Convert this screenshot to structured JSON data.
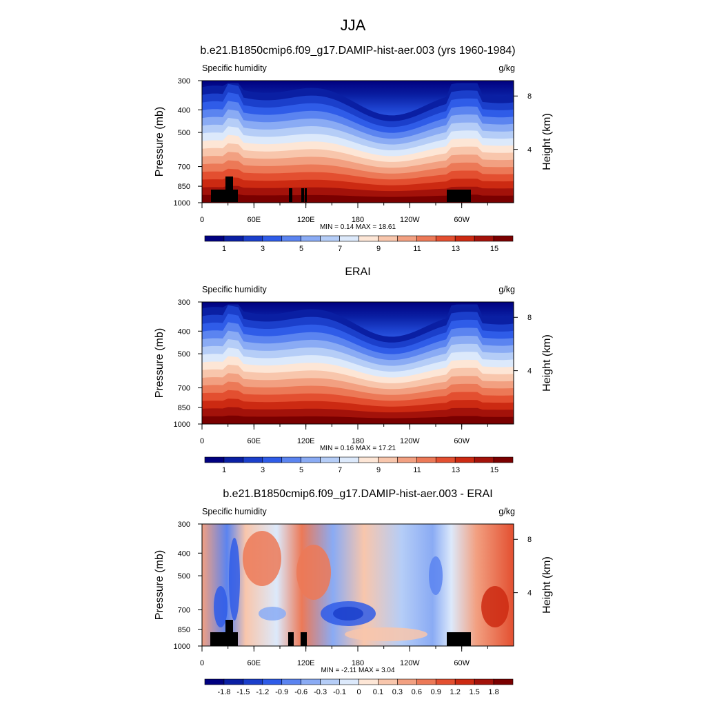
{
  "figure": {
    "title": "JJA"
  },
  "chart_data": [
    {
      "type": "heatmap",
      "title": "b.e21.B1850cmip6.f09_g17.DAMIP-hist-aer.003 (yrs 1960-1984)",
      "left_label": "Specific humidity",
      "right_label": "g/kg",
      "ylabel": "Pressure (mb)",
      "y2label": "Height (km)",
      "x_ticks": [
        "0",
        "60E",
        "120E",
        "180",
        "120W",
        "60W"
      ],
      "y_ticks": [
        "300",
        "400",
        "500",
        "700",
        "850",
        "1000"
      ],
      "y2_ticks": [
        "8",
        "4"
      ],
      "stats": "MIN =   0.14  MAX =  18.61",
      "min": 0.14,
      "max": 18.61,
      "colorbar_labels": [
        "1",
        "3",
        "5",
        "7",
        "9",
        "11",
        "13",
        "15"
      ],
      "colorbar_colors": [
        "#00007f",
        "#0a1fa3",
        "#1b3fcb",
        "#2f5ce8",
        "#5b84f0",
        "#8aabf4",
        "#b5cdf7",
        "#dce9fb",
        "#fde6d6",
        "#f8c6ac",
        "#f2a081",
        "#ec7957",
        "#e34f30",
        "#cc2a12",
        "#a3120a",
        "#7a0000"
      ]
    },
    {
      "type": "heatmap",
      "title": "ERAI",
      "left_label": "Specific humidity",
      "right_label": "g/kg",
      "ylabel": "Pressure (mb)",
      "y2label": "Height (km)",
      "x_ticks": [
        "0",
        "60E",
        "120E",
        "180",
        "120W",
        "60W"
      ],
      "y_ticks": [
        "300",
        "400",
        "500",
        "700",
        "850",
        "1000"
      ],
      "y2_ticks": [
        "8",
        "4"
      ],
      "stats": "MIN =   0.16  MAX =  17.21",
      "min": 0.16,
      "max": 17.21,
      "colorbar_labels": [
        "1",
        "3",
        "5",
        "7",
        "9",
        "11",
        "13",
        "15"
      ],
      "colorbar_colors": [
        "#00007f",
        "#0a1fa3",
        "#1b3fcb",
        "#2f5ce8",
        "#5b84f0",
        "#8aabf4",
        "#b5cdf7",
        "#dce9fb",
        "#fde6d6",
        "#f8c6ac",
        "#f2a081",
        "#ec7957",
        "#e34f30",
        "#cc2a12",
        "#a3120a",
        "#7a0000"
      ]
    },
    {
      "type": "heatmap",
      "title": "b.e21.B1850cmip6.f09_g17.DAMIP-hist-aer.003 - ERAI",
      "left_label": "Specific humidity",
      "right_label": "g/kg",
      "ylabel": "Pressure (mb)",
      "y2label": "Height (km)",
      "x_ticks": [
        "0",
        "60E",
        "120E",
        "180",
        "120W",
        "60W"
      ],
      "y_ticks": [
        "300",
        "400",
        "500",
        "700",
        "850",
        "1000"
      ],
      "y2_ticks": [
        "8",
        "4"
      ],
      "stats": "MIN =  -2.11  MAX =   3.04",
      "min": -2.11,
      "max": 3.04,
      "colorbar_labels": [
        "-1.8",
        "-1.5",
        "-1.2",
        "-0.9",
        "-0.6",
        "-0.3",
        "-0.1",
        "0",
        "0.1",
        "0.3",
        "0.6",
        "0.9",
        "1.2",
        "1.5",
        "1.8"
      ],
      "colorbar_colors": [
        "#00007f",
        "#0a1fa3",
        "#1b3fcb",
        "#2f5ce8",
        "#5b84f0",
        "#8aabf4",
        "#b5cdf7",
        "#dce9fb",
        "#fde6d6",
        "#f8c6ac",
        "#f2a081",
        "#ec7957",
        "#e34f30",
        "#cc2a12",
        "#a3120a",
        "#7a0000"
      ]
    }
  ]
}
